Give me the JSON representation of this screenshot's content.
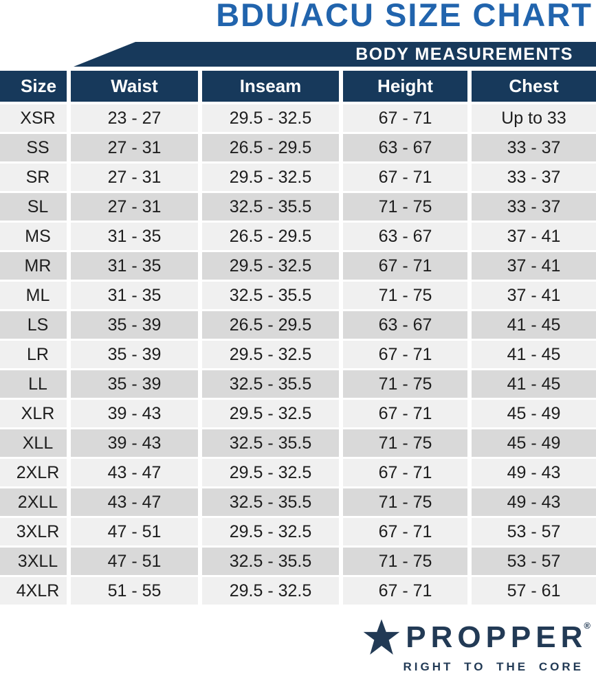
{
  "title": "BDU/ACU SIZE CHART",
  "banner": {
    "label": "BODY MEASUREMENTS"
  },
  "chart_data": {
    "type": "table",
    "title": "BDU/ACU SIZE CHART",
    "section_label": "BODY MEASUREMENTS",
    "columns": [
      "Size",
      "Waist",
      "Inseam",
      "Height",
      "Chest"
    ],
    "rows": [
      [
        "XSR",
        "23 - 27",
        "29.5 - 32.5",
        "67 - 71",
        "Up to 33"
      ],
      [
        "SS",
        "27 - 31",
        "26.5 - 29.5",
        "63 - 67",
        "33 - 37"
      ],
      [
        "SR",
        "27 - 31",
        "29.5 - 32.5",
        "67 - 71",
        "33 - 37"
      ],
      [
        "SL",
        "27 - 31",
        "32.5 - 35.5",
        "71 - 75",
        "33 - 37"
      ],
      [
        "MS",
        "31 - 35",
        "26.5 - 29.5",
        "63 - 67",
        "37 - 41"
      ],
      [
        "MR",
        "31 - 35",
        "29.5 - 32.5",
        "67 - 71",
        "37 - 41"
      ],
      [
        "ML",
        "31 - 35",
        "32.5 - 35.5",
        "71 - 75",
        "37 - 41"
      ],
      [
        "LS",
        "35 - 39",
        "26.5 - 29.5",
        "63 - 67",
        "41 - 45"
      ],
      [
        "LR",
        "35 - 39",
        "29.5 - 32.5",
        "67 - 71",
        "41 - 45"
      ],
      [
        "LL",
        "35 - 39",
        "32.5 - 35.5",
        "71 - 75",
        "41 - 45"
      ],
      [
        "XLR",
        "39 - 43",
        "29.5 - 32.5",
        "67 - 71",
        "45 - 49"
      ],
      [
        "XLL",
        "39 - 43",
        "32.5 - 35.5",
        "71 - 75",
        "45 - 49"
      ],
      [
        "2XLR",
        "43 - 47",
        "29.5 - 32.5",
        "67 - 71",
        "49 - 43"
      ],
      [
        "2XLL",
        "43 - 47",
        "32.5 - 35.5",
        "71 - 75",
        "49 - 43"
      ],
      [
        "3XLR",
        "47 - 51",
        "29.5 - 32.5",
        "67 - 71",
        "53 - 57"
      ],
      [
        "3XLL",
        "47 - 51",
        "32.5 - 35.5",
        "71 - 75",
        "53 - 57"
      ],
      [
        "4XLR",
        "51 - 55",
        "29.5 - 32.5",
        "67 - 71",
        "57 - 61"
      ]
    ],
    "layout_hints": {
      "row_striping": true,
      "first_data_row": "light",
      "grid": "white separators"
    }
  },
  "logo": {
    "star_icon": "star",
    "brand": "PROPPER",
    "registered_mark": "®",
    "tagline": "RIGHT TO THE CORE"
  },
  "colors": {
    "navy": "#17395b",
    "title_blue": "#2164ad",
    "logo_navy": "#223a55",
    "row_light": "#f0f0f0",
    "row_dark": "#d9d9d9",
    "data_text": "#1e1e1e",
    "header_text": "#ffffff"
  }
}
